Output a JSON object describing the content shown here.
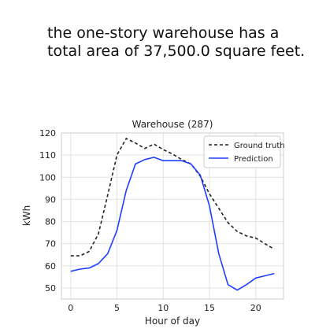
{
  "caption": "the one-story warehouse has a total area of 37,500.0 square feet.",
  "chart_data": {
    "type": "line",
    "title": "Warehouse (287)",
    "xlabel": "Hour of day",
    "ylabel": "kWh",
    "xlim": [
      -1,
      23
    ],
    "ylim": [
      45,
      120
    ],
    "xticks": [
      0,
      5,
      10,
      15,
      20
    ],
    "yticks": [
      50,
      60,
      70,
      80,
      90,
      100,
      110,
      120
    ],
    "grid": true,
    "legend_position": "top-right",
    "x": [
      0,
      1,
      2,
      3,
      4,
      5,
      6,
      7,
      8,
      9,
      10,
      11,
      12,
      13,
      14,
      15,
      16,
      17,
      18,
      19,
      20,
      21,
      22
    ],
    "series": [
      {
        "name": "Ground truth",
        "color": "#222222",
        "style": "dashed",
        "values": [
          64.5,
          64.5,
          66.5,
          74.5,
          92,
          110,
          117.5,
          115.5,
          113,
          115,
          112.5,
          110.5,
          108,
          106,
          100.5,
          92.5,
          86,
          79.5,
          75.5,
          73.5,
          72.5,
          70,
          67.5
        ]
      },
      {
        "name": "Prediction",
        "color": "#1f3fff",
        "style": "solid",
        "values": [
          57.5,
          58.5,
          59,
          61,
          65.5,
          76,
          94,
          106,
          108,
          109,
          107.5,
          107.5,
          107.5,
          106,
          101,
          87,
          65.5,
          51.5,
          49,
          51.5,
          54.5,
          55.5,
          56.5
        ]
      }
    ]
  }
}
